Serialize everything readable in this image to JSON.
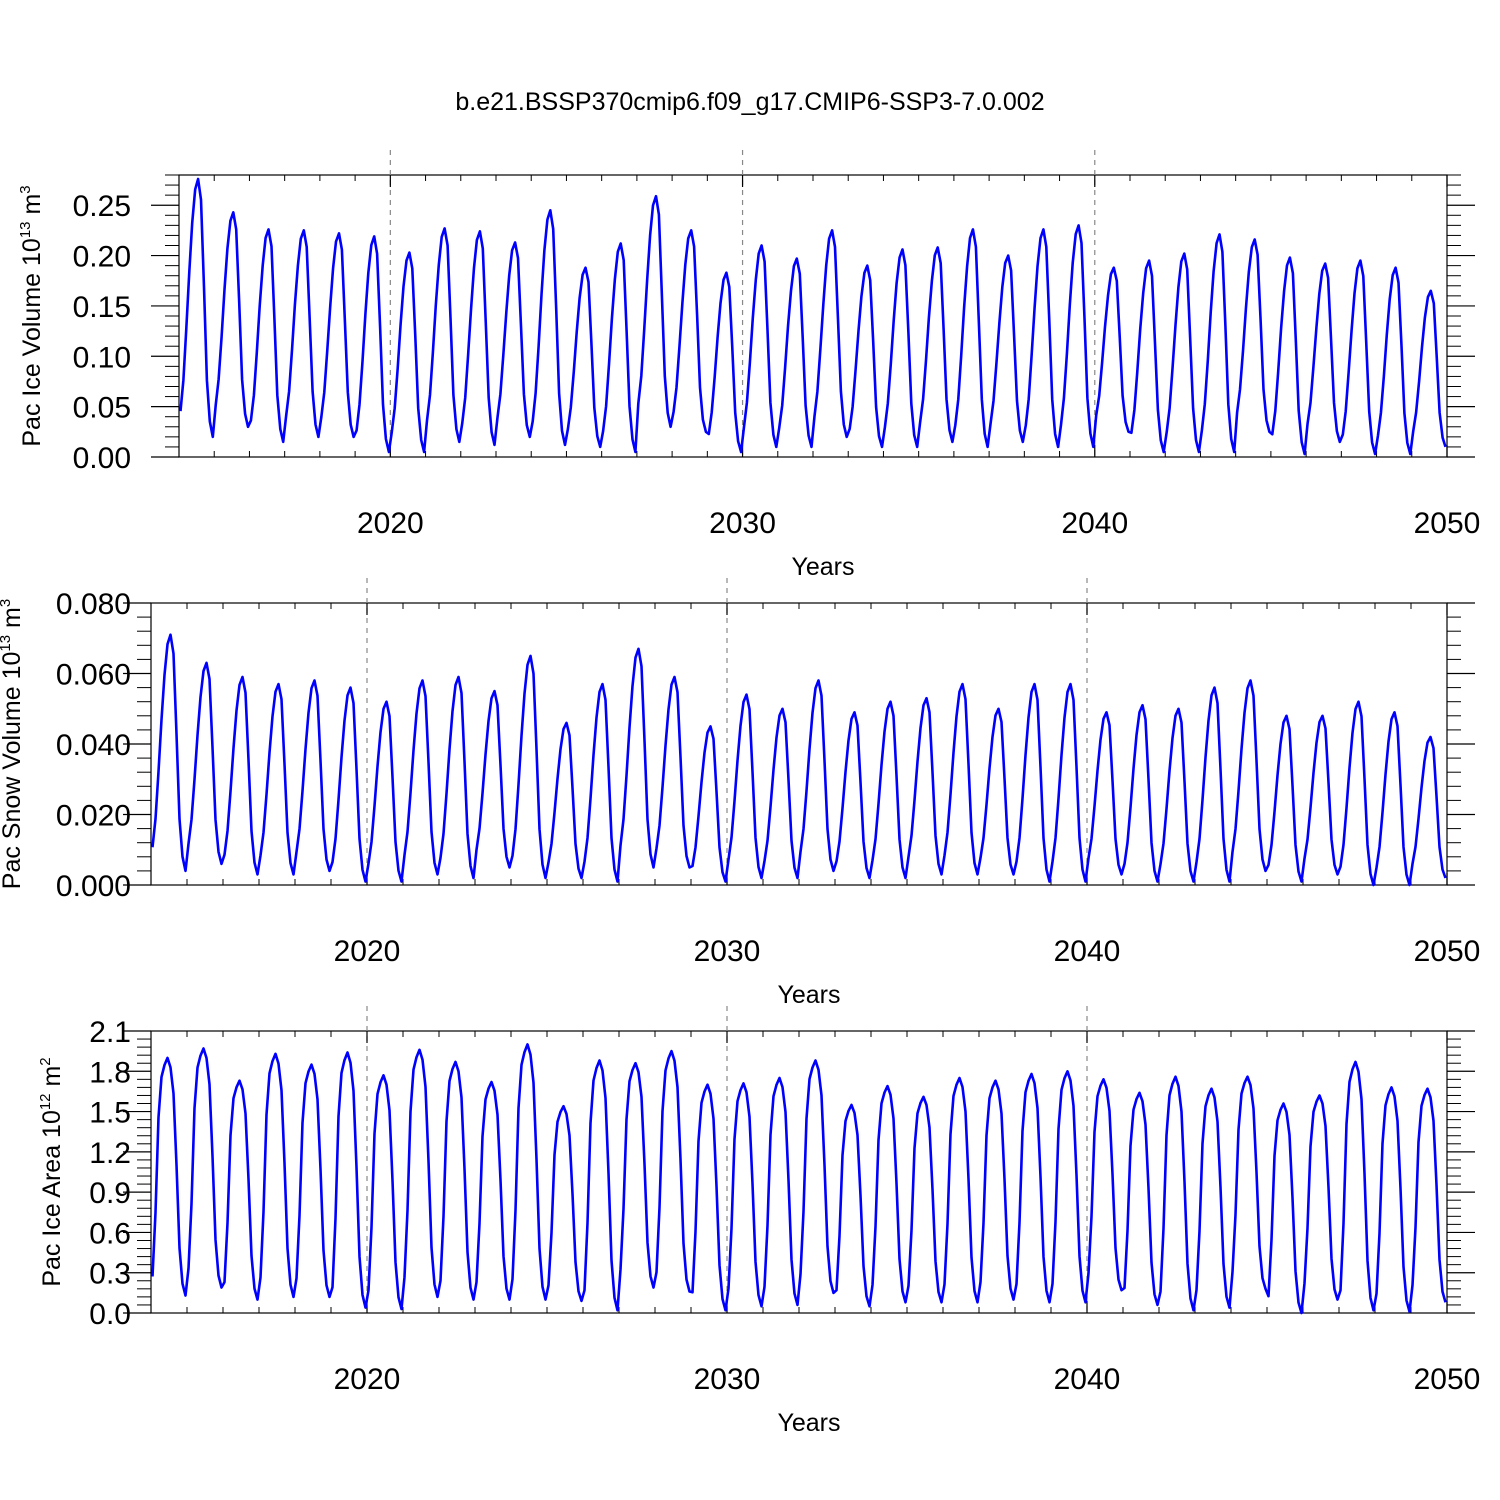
{
  "figure": {
    "title": "b.e21.BSSP370cmip6.f09_g17.CMIP6-SSP3-7.0.002"
  },
  "chart_data": [
    {
      "type": "line",
      "title": "b.e21.BSSP370cmip6.f09_g17.CMIP6-SSP3-7.0.002",
      "xlabel": "Years",
      "ylabel": {
        "pre": "Pac Ice Volume 10",
        "exp": "13",
        "mid": " m",
        "exp2": "3"
      },
      "xlim": [
        2014,
        2050
      ],
      "ylim": [
        0,
        0.28
      ],
      "xticks": [
        2020,
        2030,
        2040,
        2050
      ],
      "xtick_labels": [
        "2020",
        "2030",
        "2040",
        "2050"
      ],
      "yticks": [
        0,
        0.05,
        0.1,
        0.15,
        0.2,
        0.25
      ],
      "ytick_labels": [
        "0.00",
        "0.05",
        "0.10",
        "0.15",
        "0.20",
        "0.25"
      ],
      "ref_lines_x": [
        2020,
        2030,
        2040
      ],
      "line_color": "#0000ff",
      "series": [
        {
          "x_start": 2014.042,
          "x_step": 0.08333,
          "seasonal_shape": [
            0.1,
            0.22,
            0.42,
            0.64,
            0.83,
            0.96,
            1.0,
            0.92,
            0.58,
            0.22,
            0.06,
            0.0
          ],
          "annual_min": [
            0.02,
            0.03,
            0.015,
            0.02,
            0.02,
            0.005,
            0.005,
            0.015,
            0.012,
            0.02,
            0.012,
            0.01,
            0.005,
            0.03,
            0.025,
            0.005,
            0.01,
            0.01,
            0.02,
            0.01,
            0.01,
            0.015,
            0.01,
            0.015,
            0.01,
            0.01,
            0.025,
            0.005,
            0.005,
            0.005,
            0.025,
            0.003,
            0.015,
            0.003,
            0.003,
            0.01
          ],
          "annual_max": [
            0.276,
            0.243,
            0.226,
            0.225,
            0.222,
            0.219,
            0.203,
            0.227,
            0.224,
            0.213,
            0.245,
            0.188,
            0.212,
            0.259,
            0.225,
            0.183,
            0.21,
            0.197,
            0.225,
            0.19,
            0.206,
            0.208,
            0.226,
            0.2,
            0.226,
            0.23,
            0.188,
            0.195,
            0.202,
            0.221,
            0.216,
            0.198,
            0.192,
            0.195,
            0.188,
            0.165
          ]
        }
      ]
    },
    {
      "type": "line",
      "xlabel": "Years",
      "ylabel": {
        "pre": "Pac Snow Volume 10",
        "exp": "13",
        "mid": " m",
        "exp2": "3"
      },
      "xlim": [
        2014,
        2050
      ],
      "ylim": [
        0,
        0.08
      ],
      "xticks": [
        2020,
        2030,
        2040,
        2050
      ],
      "xtick_labels": [
        "2020",
        "2030",
        "2040",
        "2050"
      ],
      "yticks": [
        0,
        0.02,
        0.04,
        0.06,
        0.08
      ],
      "ytick_labels": [
        "0.000",
        "0.020",
        "0.040",
        "0.060",
        "0.080"
      ],
      "ref_lines_x": [
        2020,
        2030,
        2040
      ],
      "line_color": "#0000ff",
      "series": [
        {
          "x_start": 2014.042,
          "x_step": 0.08333,
          "seasonal_shape": [
            0.1,
            0.22,
            0.42,
            0.64,
            0.83,
            0.96,
            1.0,
            0.92,
            0.58,
            0.22,
            0.06,
            0.0
          ],
          "annual_min": [
            0.004,
            0.006,
            0.003,
            0.003,
            0.004,
            0.001,
            0.001,
            0.003,
            0.002,
            0.005,
            0.002,
            0.002,
            0.001,
            0.005,
            0.005,
            0.001,
            0.002,
            0.002,
            0.004,
            0.002,
            0.002,
            0.003,
            0.003,
            0.003,
            0.001,
            0.001,
            0.003,
            0.001,
            0.001,
            0.001,
            0.004,
            0.001,
            0.003,
            0.0,
            0.0,
            0.002
          ],
          "annual_max": [
            0.071,
            0.063,
            0.059,
            0.057,
            0.058,
            0.056,
            0.052,
            0.058,
            0.059,
            0.055,
            0.065,
            0.046,
            0.057,
            0.067,
            0.059,
            0.045,
            0.054,
            0.05,
            0.058,
            0.049,
            0.052,
            0.053,
            0.057,
            0.05,
            0.057,
            0.057,
            0.049,
            0.051,
            0.05,
            0.056,
            0.058,
            0.048,
            0.048,
            0.052,
            0.049,
            0.042
          ]
        }
      ]
    },
    {
      "type": "line",
      "xlabel": "Years",
      "ylabel": {
        "pre": "Pac Ice Area 10",
        "exp": "12",
        "mid": " m",
        "exp2": "2"
      },
      "xlim": [
        2014,
        2050
      ],
      "ylim": [
        0,
        2.1
      ],
      "xticks": [
        2020,
        2030,
        2040,
        2050
      ],
      "xtick_labels": [
        "2020",
        "2030",
        "2040",
        "2050"
      ],
      "yticks": [
        0,
        0.3,
        0.6,
        0.9,
        1.2,
        1.5,
        1.8,
        2.1
      ],
      "ytick_labels": [
        "0.0",
        "0.3",
        "0.6",
        "0.9",
        "1.2",
        "1.5",
        "1.8",
        "2.1"
      ],
      "ref_lines_x": [
        2020,
        2030,
        2040
      ],
      "line_color": "#0000ff",
      "series": [
        {
          "x_start": 2014.042,
          "x_step": 0.08333,
          "seasonal_shape": [
            0.08,
            0.35,
            0.75,
            0.92,
            0.97,
            1.0,
            0.96,
            0.85,
            0.55,
            0.2,
            0.05,
            0.0
          ],
          "annual_min": [
            0.13,
            0.19,
            0.1,
            0.12,
            0.12,
            0.04,
            0.03,
            0.12,
            0.1,
            0.1,
            0.1,
            0.09,
            0.02,
            0.19,
            0.16,
            0.02,
            0.05,
            0.06,
            0.15,
            0.05,
            0.08,
            0.08,
            0.08,
            0.1,
            0.08,
            0.08,
            0.17,
            0.06,
            0.02,
            0.04,
            0.18,
            0.0,
            0.1,
            0.02,
            0.01,
            0.08
          ],
          "annual_max": [
            1.9,
            1.97,
            1.73,
            1.93,
            1.85,
            1.94,
            1.77,
            1.96,
            1.87,
            1.72,
            2.0,
            1.54,
            1.88,
            1.86,
            1.95,
            1.7,
            1.71,
            1.75,
            1.88,
            1.55,
            1.69,
            1.61,
            1.75,
            1.73,
            1.78,
            1.8,
            1.74,
            1.64,
            1.76,
            1.67,
            1.76,
            1.56,
            1.62,
            1.87,
            1.68,
            1.67
          ]
        }
      ]
    }
  ]
}
